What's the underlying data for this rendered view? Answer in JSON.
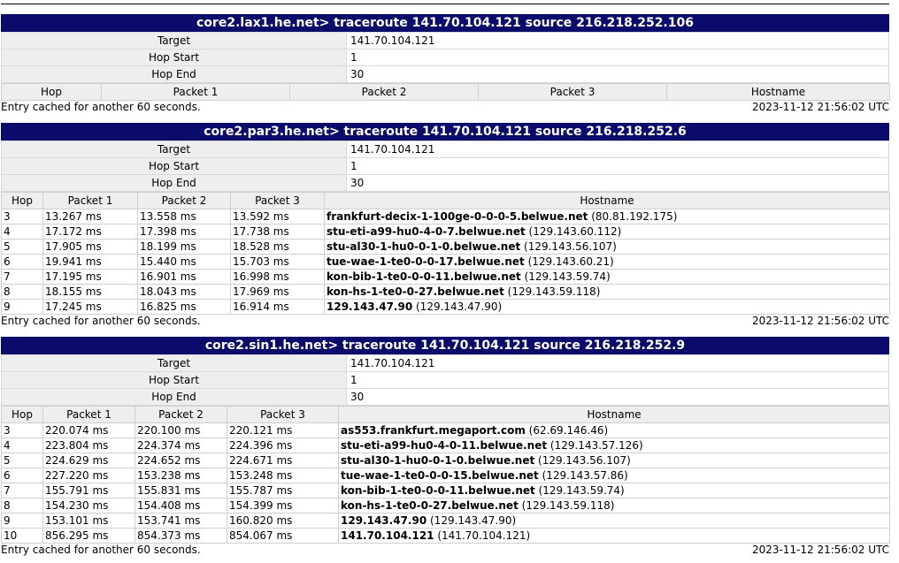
{
  "blocks": [
    {
      "title": "core2.lax1.he.net> traceroute 141.70.104.121 source 216.218.252.106",
      "meta": {
        "target_label": "Target",
        "target": "141.70.104.121",
        "hop_start_label": "Hop Start",
        "hop_start": "1",
        "hop_end_label": "Hop End",
        "hop_end": "30"
      },
      "cols": {
        "hop": "Hop",
        "p1": "Packet 1",
        "p2": "Packet 2",
        "p3": "Packet 3",
        "host": "Hostname"
      },
      "rows": [],
      "footer_left": "Entry cached for another 60 seconds.",
      "footer_right": "2023-11-12 21:56:02 UTC"
    },
    {
      "title": "core2.par3.he.net> traceroute 141.70.104.121 source 216.218.252.6",
      "meta": {
        "target_label": "Target",
        "target": "141.70.104.121",
        "hop_start_label": "Hop Start",
        "hop_start": "1",
        "hop_end_label": "Hop End",
        "hop_end": "30"
      },
      "cols": {
        "hop": "Hop",
        "p1": "Packet 1",
        "p2": "Packet 2",
        "p3": "Packet 3",
        "host": "Hostname"
      },
      "rows": [
        {
          "hop": "3",
          "p1": "13.267 ms",
          "p2": "13.558 ms",
          "p3": "13.592 ms",
          "host": "frankfurt-decix-1-100ge-0-0-0-5.belwue.net",
          "ip": "(80.81.192.175)"
        },
        {
          "hop": "4",
          "p1": "17.172 ms",
          "p2": "17.398 ms",
          "p3": "17.738 ms",
          "host": "stu-eti-a99-hu0-4-0-7.belwue.net",
          "ip": "(129.143.60.112)"
        },
        {
          "hop": "5",
          "p1": "17.905 ms",
          "p2": "18.199 ms",
          "p3": "18.528 ms",
          "host": "stu-al30-1-hu0-0-1-0.belwue.net",
          "ip": "(129.143.56.107)"
        },
        {
          "hop": "6",
          "p1": "19.941 ms",
          "p2": "15.440 ms",
          "p3": "15.703 ms",
          "host": "tue-wae-1-te0-0-0-17.belwue.net",
          "ip": "(129.143.60.21)"
        },
        {
          "hop": "7",
          "p1": "17.195 ms",
          "p2": "16.901 ms",
          "p3": "16.998 ms",
          "host": "kon-bib-1-te0-0-0-11.belwue.net",
          "ip": "(129.143.59.74)"
        },
        {
          "hop": "8",
          "p1": "18.155 ms",
          "p2": "18.043 ms",
          "p3": "17.969 ms",
          "host": "kon-hs-1-te0-0-27.belwue.net",
          "ip": "(129.143.59.118)"
        },
        {
          "hop": "9",
          "p1": "17.245 ms",
          "p2": "16.825 ms",
          "p3": "16.914 ms",
          "host": "129.143.47.90",
          "ip": "(129.143.47.90)"
        }
      ],
      "footer_left": "Entry cached for another 60 seconds.",
      "footer_right": "2023-11-12 21:56:02 UTC"
    },
    {
      "title": "core2.sin1.he.net> traceroute 141.70.104.121 source 216.218.252.9",
      "meta": {
        "target_label": "Target",
        "target": "141.70.104.121",
        "hop_start_label": "Hop Start",
        "hop_start": "1",
        "hop_end_label": "Hop End",
        "hop_end": "30"
      },
      "cols": {
        "hop": "Hop",
        "p1": "Packet 1",
        "p2": "Packet 2",
        "p3": "Packet 3",
        "host": "Hostname"
      },
      "rows": [
        {
          "hop": "3",
          "p1": "220.074 ms",
          "p2": "220.100 ms",
          "p3": "220.121 ms",
          "host": "as553.frankfurt.megaport.com",
          "ip": "(62.69.146.46)"
        },
        {
          "hop": "4",
          "p1": "223.804 ms",
          "p2": "224.374 ms",
          "p3": "224.396 ms",
          "host": "stu-eti-a99-hu0-4-0-11.belwue.net",
          "ip": "(129.143.57.126)"
        },
        {
          "hop": "5",
          "p1": "224.629 ms",
          "p2": "224.652 ms",
          "p3": "224.671 ms",
          "host": "stu-al30-1-hu0-0-1-0.belwue.net",
          "ip": "(129.143.56.107)"
        },
        {
          "hop": "6",
          "p1": "227.220 ms",
          "p2": "153.238 ms",
          "p3": "153.248 ms",
          "host": "tue-wae-1-te0-0-0-15.belwue.net",
          "ip": "(129.143.57.86)"
        },
        {
          "hop": "7",
          "p1": "155.791 ms",
          "p2": "155.831 ms",
          "p3": "155.787 ms",
          "host": "kon-bib-1-te0-0-0-11.belwue.net",
          "ip": "(129.143.59.74)"
        },
        {
          "hop": "8",
          "p1": "154.230 ms",
          "p2": "154.408 ms",
          "p3": "154.399 ms",
          "host": "kon-hs-1-te0-0-27.belwue.net",
          "ip": "(129.143.59.118)"
        },
        {
          "hop": "9",
          "p1": "153.101 ms",
          "p2": "153.741 ms",
          "p3": "160.820 ms",
          "host": "129.143.47.90",
          "ip": "(129.143.47.90)"
        },
        {
          "hop": "10",
          "p1": "856.295 ms",
          "p2": "854.373 ms",
          "p3": "854.067 ms",
          "host": "141.70.104.121",
          "ip": "(141.70.104.121)"
        }
      ],
      "footer_left": "Entry cached for another 60 seconds.",
      "footer_right": "2023-11-12 21:56:02 UTC"
    }
  ]
}
